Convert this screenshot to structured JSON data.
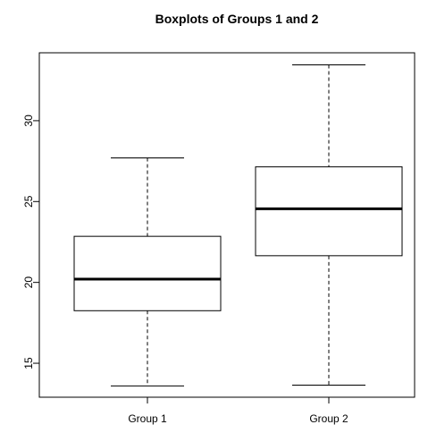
{
  "chart_data": {
    "type": "boxplot",
    "title": "Boxplots of Groups 1 and 2",
    "xlabel": "",
    "ylabel": "",
    "categories": [
      "Group 1",
      "Group 2"
    ],
    "boxes": [
      {
        "category": "Group 1",
        "min": 13.6,
        "q1": 18.25,
        "median": 20.2,
        "q3": 22.85,
        "max": 27.7
      },
      {
        "category": "Group 2",
        "min": 13.65,
        "q1": 21.65,
        "median": 24.55,
        "q3": 27.15,
        "max": 33.45
      }
    ],
    "yticks": [
      15,
      20,
      25,
      30
    ],
    "ylim": [
      12.9,
      34.2
    ],
    "grid": false,
    "legend": "none"
  }
}
